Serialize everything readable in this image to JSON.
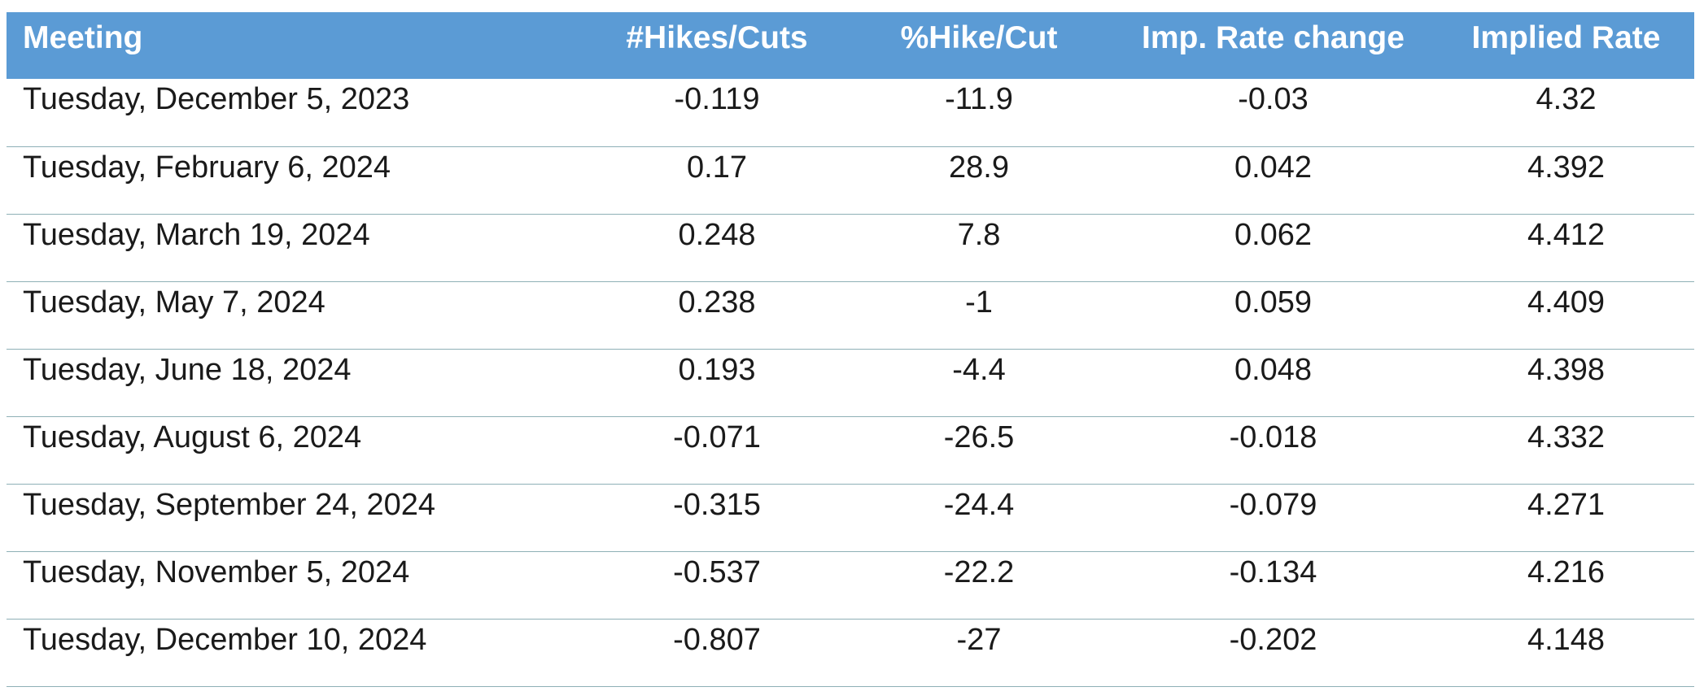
{
  "table": {
    "headers": [
      "Meeting",
      "#Hikes/Cuts",
      "%Hike/Cut",
      "Imp. Rate change",
      "Implied Rate"
    ],
    "rows": [
      [
        "Tuesday, December 5, 2023",
        "-0.119",
        "-11.9",
        "-0.03",
        "4.32"
      ],
      [
        "Tuesday, February 6, 2024",
        "0.17",
        "28.9",
        "0.042",
        "4.392"
      ],
      [
        "Tuesday, March 19, 2024",
        "0.248",
        "7.8",
        "0.062",
        "4.412"
      ],
      [
        "Tuesday, May 7, 2024",
        "0.238",
        "-1",
        "0.059",
        "4.409"
      ],
      [
        "Tuesday, June 18, 2024",
        "0.193",
        "-4.4",
        "0.048",
        "4.398"
      ],
      [
        "Tuesday, August 6, 2024",
        "-0.071",
        "-26.5",
        "-0.018",
        "4.332"
      ],
      [
        "Tuesday, September 24, 2024",
        "-0.315",
        "-24.4",
        "-0.079",
        "4.271"
      ],
      [
        "Tuesday, November 5, 2024",
        "-0.537",
        "-22.2",
        "-0.134",
        "4.216"
      ],
      [
        "Tuesday, December 10, 2024",
        "-0.807",
        "-27",
        "-0.202",
        "4.148"
      ]
    ]
  },
  "colors": {
    "header_background": "#5b9bd5",
    "header_text": "#ffffff",
    "row_divider": "#8eb0b6"
  }
}
